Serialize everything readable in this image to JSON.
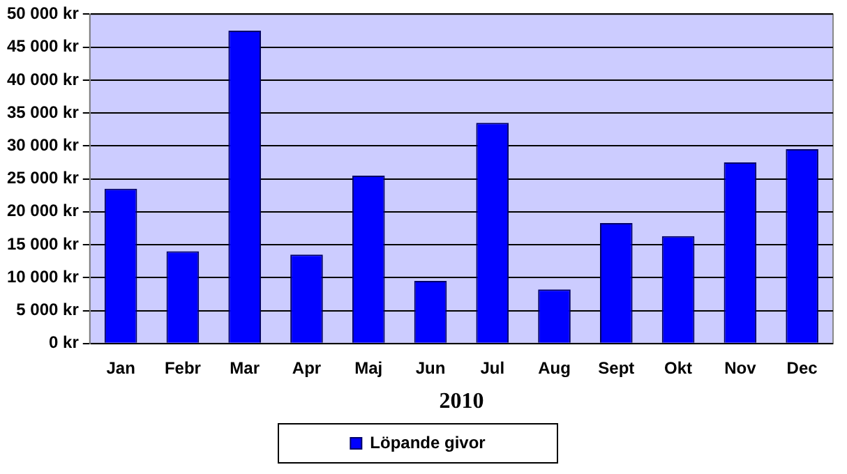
{
  "chart_data": {
    "type": "bar",
    "xlabel": "2010",
    "categories": [
      "Jan",
      "Febr",
      "Mar",
      "Apr",
      "Maj",
      "Jun",
      "Jul",
      "Aug",
      "Sept",
      "Okt",
      "Nov",
      "Dec"
    ],
    "series": [
      {
        "name": "Löpande givor",
        "color": "#0000ff",
        "values": [
          23500,
          14000,
          47500,
          13500,
          25500,
          9500,
          33500,
          8200,
          18300,
          16300,
          27500,
          29500
        ]
      }
    ],
    "ylim": [
      0,
      50000
    ],
    "yticks": [
      {
        "value": 0,
        "label": "0 kr"
      },
      {
        "value": 5000,
        "label": "5 000 kr"
      },
      {
        "value": 10000,
        "label": "10 000 kr"
      },
      {
        "value": 15000,
        "label": "15 000 kr"
      },
      {
        "value": 20000,
        "label": "20 000 kr"
      },
      {
        "value": 25000,
        "label": "25 000 kr"
      },
      {
        "value": 30000,
        "label": "30 000 kr"
      },
      {
        "value": 35000,
        "label": "35 000 kr"
      },
      {
        "value": 40000,
        "label": "40 000 kr"
      },
      {
        "value": 45000,
        "label": "45 000 kr"
      },
      {
        "value": 50000,
        "label": "50 000 kr"
      }
    ],
    "grid": "y",
    "legend": "bottom"
  }
}
